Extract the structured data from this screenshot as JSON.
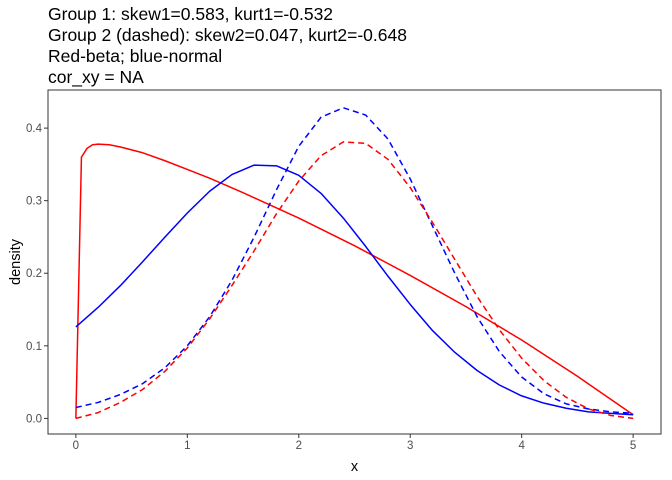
{
  "chart_data": {
    "type": "line",
    "title_lines": [
      "Group 1: skew1=0.583, kurt1=-0.532",
      "Group 2 (dashed): skew2=0.047, kurt2=-0.648",
      "Red-beta; blue-normal",
      "cor_xy = NA"
    ],
    "xlabel": "x",
    "ylabel": "density",
    "xlim": [
      -0.25,
      5.25
    ],
    "ylim": [
      -0.0215,
      0.4525
    ],
    "xticks": [
      0,
      1,
      2,
      3,
      4,
      5
    ],
    "yticks": [
      0.0,
      0.1,
      0.2,
      0.3,
      0.4
    ],
    "ytick_labels": [
      "0.0",
      "0.1",
      "0.2",
      "0.3",
      "0.4"
    ],
    "grid": false,
    "series": [
      {
        "color": "#ff0000",
        "dash": "solid",
        "x": [
          0,
          0.05,
          0.1,
          0.15,
          0.2,
          0.3,
          0.4,
          0.6,
          0.8,
          1.0,
          1.2,
          1.5,
          2.0,
          2.5,
          3.0,
          3.5,
          4.0,
          4.5,
          5.0
        ],
        "y": [
          0.0,
          0.36,
          0.372,
          0.377,
          0.378,
          0.377,
          0.374,
          0.366,
          0.355,
          0.343,
          0.331,
          0.311,
          0.276,
          0.238,
          0.197,
          0.154,
          0.108,
          0.058,
          0.005
        ]
      },
      {
        "color": "#0000ff",
        "dash": "solid",
        "x": [
          0,
          0.2,
          0.4,
          0.6,
          0.8,
          1.0,
          1.2,
          1.4,
          1.6,
          1.8,
          2.0,
          2.2,
          2.4,
          2.6,
          2.8,
          3.0,
          3.2,
          3.4,
          3.6,
          3.8,
          4.0,
          4.2,
          4.4,
          4.6,
          4.8,
          5.0
        ],
        "y": [
          0.126,
          0.153,
          0.183,
          0.216,
          0.25,
          0.283,
          0.313,
          0.336,
          0.349,
          0.348,
          0.335,
          0.31,
          0.276,
          0.237,
          0.196,
          0.157,
          0.121,
          0.091,
          0.066,
          0.046,
          0.031,
          0.021,
          0.014,
          0.009,
          0.007,
          0.005
        ]
      },
      {
        "color": "#0000ff",
        "dash": "dashed",
        "x": [
          0,
          0.2,
          0.4,
          0.6,
          0.8,
          1.0,
          1.2,
          1.4,
          1.6,
          1.8,
          2.0,
          2.2,
          2.4,
          2.6,
          2.8,
          3.0,
          3.2,
          3.4,
          3.6,
          3.8,
          4.0,
          4.2,
          4.4,
          4.6,
          4.8,
          5.0
        ],
        "y": [
          0.015,
          0.022,
          0.033,
          0.048,
          0.07,
          0.1,
          0.14,
          0.19,
          0.25,
          0.315,
          0.375,
          0.415,
          0.428,
          0.418,
          0.385,
          0.33,
          0.265,
          0.2,
          0.14,
          0.092,
          0.057,
          0.034,
          0.02,
          0.013,
          0.009,
          0.007
        ]
      },
      {
        "color": "#ff0000",
        "dash": "dashed",
        "x": [
          0,
          0.2,
          0.4,
          0.6,
          0.8,
          1.0,
          1.2,
          1.4,
          1.6,
          1.8,
          2.0,
          2.2,
          2.4,
          2.6,
          2.8,
          3.0,
          3.2,
          3.4,
          3.6,
          3.8,
          4.0,
          4.2,
          4.4,
          4.6,
          4.8,
          5.0
        ],
        "y": [
          0.0,
          0.008,
          0.022,
          0.04,
          0.065,
          0.097,
          0.137,
          0.183,
          0.231,
          0.282,
          0.327,
          0.362,
          0.381,
          0.379,
          0.357,
          0.318,
          0.27,
          0.219,
          0.168,
          0.122,
          0.083,
          0.052,
          0.029,
          0.013,
          0.004,
          0.0
        ]
      }
    ]
  }
}
